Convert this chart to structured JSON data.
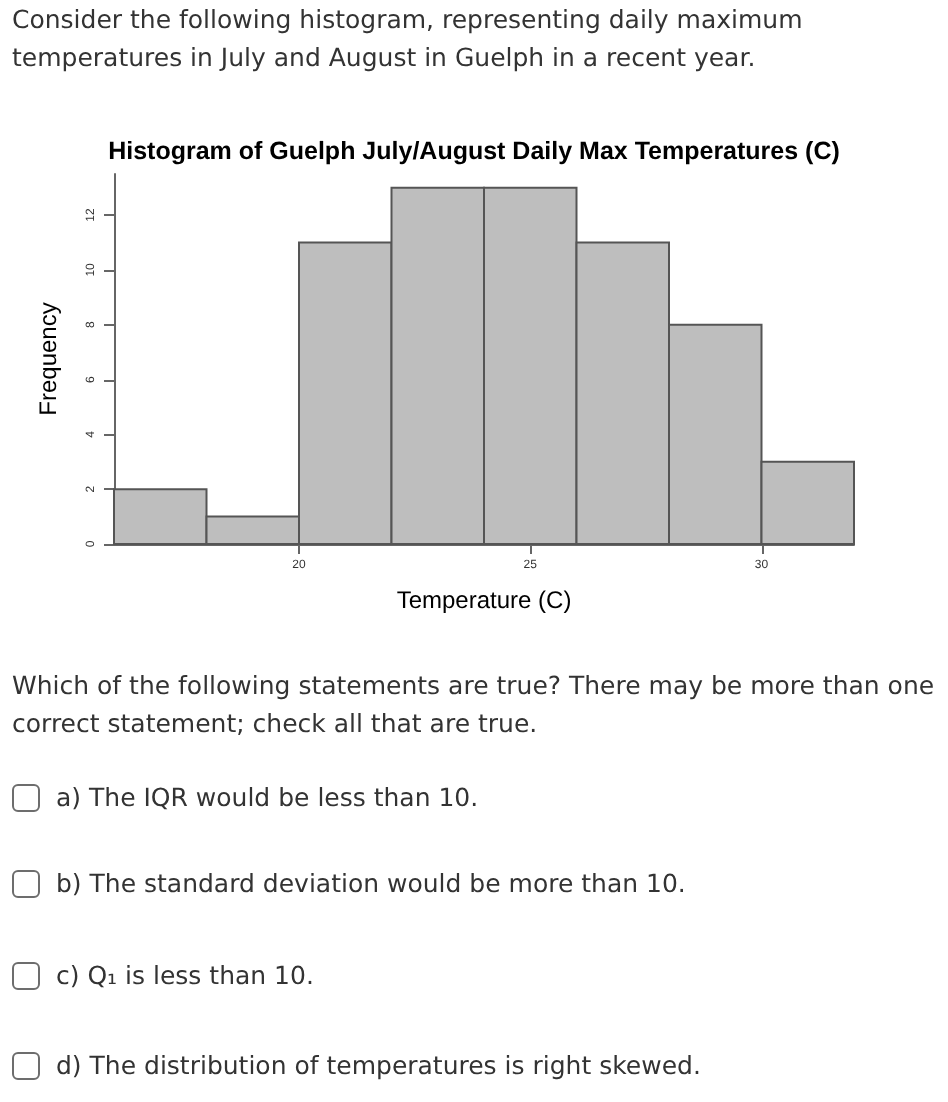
{
  "chart_data": {
    "type": "histogram",
    "title": "Histogram of Guelph July/August Daily Max Temperatures (C)",
    "xlabel": "Temperature (C)",
    "ylabel": "Frequency",
    "bins": [
      16,
      18,
      20,
      22,
      24,
      26,
      28,
      30,
      32
    ],
    "values": [
      2,
      1,
      11,
      13,
      13,
      11,
      8,
      3
    ],
    "color": "#bebebe",
    "xlim": [
      16,
      32
    ],
    "xticks": [
      20,
      25,
      30
    ],
    "ylim": [
      0,
      13.5
    ],
    "yticks": [
      0,
      2,
      4,
      6,
      8,
      10,
      12
    ],
    "grid": false,
    "annotations": [
      "Consider the following histogram, representing daily maximum temperatures in July and August in Guelph in a recent year.",
      "Which of the following statements are true? There may be more than one correct statement; check all that are true.",
      "a) The IQR would be less than 10.",
      "b) The standard deviation would be more than 10.",
      "c) Q₁ is less than 10.",
      "d) The distribution of temperatures is right skewed."
    ]
  }
}
